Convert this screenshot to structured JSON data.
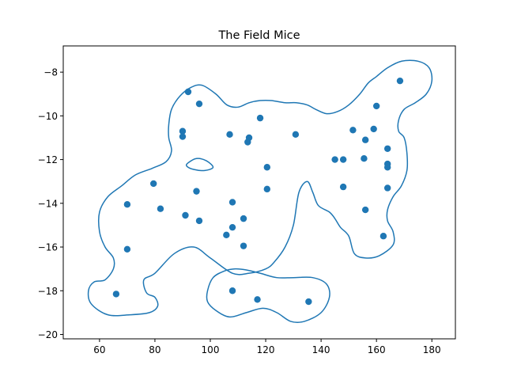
{
  "chart_data": {
    "type": "scatter",
    "title": "The Field Mice",
    "xlabel": "",
    "ylabel": "",
    "xlim": [
      46.9,
      188.5
    ],
    "ylim": [
      -20.2,
      -6.8
    ],
    "xticks": [
      60,
      80,
      100,
      120,
      140,
      160,
      180
    ],
    "yticks": [
      -8,
      -10,
      -12,
      -14,
      -16,
      -18,
      -20
    ],
    "grid": false,
    "colors": {
      "points": "#1f77b4",
      "contour": "#1f77b4"
    },
    "points": [
      {
        "x": 92.0,
        "y": -8.9
      },
      {
        "x": 96.0,
        "y": -9.45
      },
      {
        "x": 90.0,
        "y": -10.7
      },
      {
        "x": 90.0,
        "y": -10.95
      },
      {
        "x": 107.0,
        "y": -10.85
      },
      {
        "x": 114.0,
        "y": -11.0
      },
      {
        "x": 113.5,
        "y": -11.2
      },
      {
        "x": 118.0,
        "y": -10.1
      },
      {
        "x": 130.8,
        "y": -10.85
      },
      {
        "x": 120.5,
        "y": -12.35
      },
      {
        "x": 120.5,
        "y": -13.35
      },
      {
        "x": 79.5,
        "y": -13.1
      },
      {
        "x": 95.0,
        "y": -13.45
      },
      {
        "x": 70.0,
        "y": -14.05
      },
      {
        "x": 82.0,
        "y": -14.25
      },
      {
        "x": 91.0,
        "y": -14.55
      },
      {
        "x": 96.0,
        "y": -14.8
      },
      {
        "x": 108.0,
        "y": -13.95
      },
      {
        "x": 112.0,
        "y": -14.7
      },
      {
        "x": 108.0,
        "y": -15.1
      },
      {
        "x": 105.8,
        "y": -15.45
      },
      {
        "x": 112.0,
        "y": -15.95
      },
      {
        "x": 70.0,
        "y": -16.1
      },
      {
        "x": 66.0,
        "y": -18.15
      },
      {
        "x": 108.0,
        "y": -18.0
      },
      {
        "x": 117.0,
        "y": -18.4
      },
      {
        "x": 135.5,
        "y": -18.5
      },
      {
        "x": 145.0,
        "y": -12.0
      },
      {
        "x": 148.0,
        "y": -12.0
      },
      {
        "x": 148.0,
        "y": -13.25
      },
      {
        "x": 151.5,
        "y": -10.65
      },
      {
        "x": 156.0,
        "y": -11.1
      },
      {
        "x": 155.5,
        "y": -11.95
      },
      {
        "x": 159.0,
        "y": -10.6
      },
      {
        "x": 160.0,
        "y": -9.55
      },
      {
        "x": 168.5,
        "y": -8.4
      },
      {
        "x": 164.0,
        "y": -11.5
      },
      {
        "x": 164.0,
        "y": -12.2
      },
      {
        "x": 164.0,
        "y": -12.35
      },
      {
        "x": 164.0,
        "y": -13.3
      },
      {
        "x": 156.0,
        "y": -14.3
      },
      {
        "x": 162.5,
        "y": -15.5
      }
    ],
    "contours": [
      [
        [
          108.0,
          -17.2
        ],
        [
          100.0,
          -16.5
        ],
        [
          94.0,
          -16.0
        ],
        [
          87.0,
          -16.3
        ],
        [
          80.0,
          -17.2
        ],
        [
          76.0,
          -17.5
        ],
        [
          77.0,
          -18.1
        ],
        [
          80.0,
          -18.3
        ],
        [
          81.0,
          -18.7
        ],
        [
          78.0,
          -19.0
        ],
        [
          71.0,
          -19.1
        ],
        [
          63.0,
          -19.1
        ],
        [
          57.0,
          -18.6
        ],
        [
          56.0,
          -18.0
        ],
        [
          58.0,
          -17.6
        ],
        [
          62.0,
          -17.5
        ],
        [
          65.0,
          -17.0
        ],
        [
          65.0,
          -16.5
        ],
        [
          62.0,
          -16.0
        ],
        [
          60.0,
          -15.3
        ],
        [
          60.0,
          -14.4
        ],
        [
          63.0,
          -13.7
        ],
        [
          68.0,
          -13.2
        ],
        [
          73.0,
          -12.7
        ],
        [
          79.0,
          -12.4
        ],
        [
          84.0,
          -12.1
        ],
        [
          86.0,
          -11.6
        ],
        [
          85.0,
          -11.0
        ],
        [
          85.0,
          -10.4
        ],
        [
          86.0,
          -9.7
        ],
        [
          89.0,
          -9.1
        ],
        [
          93.0,
          -8.7
        ],
        [
          97.0,
          -8.6
        ],
        [
          102.0,
          -9.0
        ],
        [
          106.0,
          -9.5
        ],
        [
          110.0,
          -9.6
        ],
        [
          114.0,
          -9.4
        ],
        [
          118.0,
          -9.3
        ],
        [
          122.0,
          -9.3
        ],
        [
          127.0,
          -9.4
        ],
        [
          131.0,
          -9.4
        ],
        [
          135.0,
          -9.5
        ],
        [
          138.0,
          -9.7
        ],
        [
          142.0,
          -9.9
        ],
        [
          146.0,
          -9.8
        ],
        [
          150.0,
          -9.5
        ],
        [
          154.0,
          -9.0
        ],
        [
          157.0,
          -8.5
        ],
        [
          160.0,
          -8.2
        ],
        [
          164.0,
          -7.8
        ],
        [
          169.0,
          -7.5
        ],
        [
          175.0,
          -7.5
        ],
        [
          179.0,
          -7.8
        ],
        [
          180.0,
          -8.4
        ],
        [
          178.0,
          -9.0
        ],
        [
          174.0,
          -9.4
        ],
        [
          170.0,
          -9.7
        ],
        [
          168.0,
          -10.2
        ],
        [
          168.0,
          -10.7
        ],
        [
          170.0,
          -11.0
        ],
        [
          171.0,
          -11.7
        ],
        [
          171.0,
          -12.5
        ],
        [
          169.0,
          -13.2
        ],
        [
          166.0,
          -13.7
        ],
        [
          164.0,
          -14.3
        ],
        [
          164.0,
          -14.8
        ],
        [
          166.0,
          -15.3
        ],
        [
          166.0,
          -15.9
        ],
        [
          161.0,
          -16.4
        ],
        [
          156.0,
          -16.5
        ],
        [
          152.0,
          -16.3
        ],
        [
          150.0,
          -15.5
        ],
        [
          147.0,
          -15.1
        ],
        [
          145.0,
          -14.7
        ],
        [
          143.0,
          -14.4
        ],
        [
          139.0,
          -14.1
        ],
        [
          137.0,
          -13.5
        ],
        [
          135.0,
          -13.0
        ],
        [
          132.0,
          -13.5
        ],
        [
          130.0,
          -15.0
        ],
        [
          127.0,
          -16.0
        ],
        [
          123.0,
          -16.7
        ],
        [
          120.0,
          -17.0
        ],
        [
          114.0,
          -17.2
        ],
        [
          108.0,
          -17.2
        ]
      ],
      [
        [
          109.0,
          -17.0
        ],
        [
          113.0,
          -17.05
        ],
        [
          118.0,
          -17.2
        ],
        [
          124.0,
          -17.4
        ],
        [
          130.0,
          -17.4
        ],
        [
          137.0,
          -17.4
        ],
        [
          142.0,
          -17.7
        ],
        [
          143.0,
          -18.3
        ],
        [
          140.0,
          -19.0
        ],
        [
          134.0,
          -19.4
        ],
        [
          129.0,
          -19.4
        ],
        [
          124.0,
          -19.0
        ],
        [
          119.0,
          -18.8
        ],
        [
          113.0,
          -19.0
        ],
        [
          107.0,
          -19.2
        ],
        [
          102.0,
          -18.9
        ],
        [
          99.0,
          -18.5
        ],
        [
          99.0,
          -18.0
        ],
        [
          101.0,
          -17.4
        ],
        [
          105.0,
          -17.1
        ],
        [
          109.0,
          -17.0
        ]
      ],
      [
        [
          92.0,
          -12.15
        ],
        [
          95.0,
          -11.95
        ],
        [
          98.5,
          -12.05
        ],
        [
          101.0,
          -12.35
        ],
        [
          98.0,
          -12.5
        ],
        [
          94.0,
          -12.45
        ],
        [
          91.5,
          -12.3
        ],
        [
          92.0,
          -12.15
        ]
      ]
    ]
  }
}
